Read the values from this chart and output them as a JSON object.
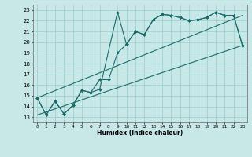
{
  "xlabel": "Humidex (Indice chaleur)",
  "xlim": [
    -0.5,
    23.5
  ],
  "ylim": [
    12.5,
    23.5
  ],
  "yticks": [
    13,
    14,
    15,
    16,
    17,
    18,
    19,
    20,
    21,
    22,
    23
  ],
  "xticks": [
    0,
    1,
    2,
    3,
    4,
    5,
    6,
    7,
    8,
    9,
    10,
    11,
    12,
    13,
    14,
    15,
    16,
    17,
    18,
    19,
    20,
    21,
    22,
    23
  ],
  "bg_color": "#c8e8e8",
  "line_color": "#1a6b6b",
  "grid_color": "#99cccc",
  "line1_x": [
    0,
    1,
    2,
    3,
    4,
    5,
    6,
    7,
    9,
    10,
    11,
    12,
    13,
    14,
    15,
    16,
    17,
    18,
    19,
    20,
    21,
    22,
    23
  ],
  "line1_y": [
    14.8,
    13.2,
    14.5,
    13.3,
    14.1,
    15.5,
    15.3,
    15.6,
    22.8,
    19.8,
    21.0,
    20.7,
    22.1,
    22.6,
    22.5,
    22.3,
    22.0,
    22.1,
    22.3,
    22.8,
    22.5,
    22.5,
    19.7
  ],
  "line2_x": [
    0,
    1,
    2,
    3,
    4,
    5,
    6,
    7,
    8,
    9,
    10,
    11,
    12,
    13,
    14,
    15,
    16,
    17,
    18,
    19,
    20,
    21,
    22,
    23
  ],
  "line2_y": [
    14.8,
    13.2,
    14.5,
    13.3,
    14.1,
    15.5,
    15.3,
    16.5,
    16.5,
    19.0,
    19.8,
    21.0,
    20.7,
    22.1,
    22.6,
    22.5,
    22.3,
    22.0,
    22.1,
    22.3,
    22.8,
    22.5,
    22.5,
    19.7
  ],
  "line3_x": [
    0,
    23
  ],
  "line3_y": [
    13.2,
    19.7
  ],
  "line4_x": [
    0,
    23
  ],
  "line4_y": [
    14.8,
    22.5
  ],
  "marker_x": [
    0,
    1,
    2,
    3,
    4,
    5,
    6,
    7,
    9,
    10,
    11,
    12,
    13,
    14,
    15,
    16,
    17,
    18,
    19,
    20,
    21,
    22,
    23
  ],
  "marker_y": [
    14.8,
    13.2,
    14.5,
    13.3,
    14.1,
    15.5,
    15.3,
    15.6,
    22.8,
    19.8,
    21.0,
    20.7,
    22.1,
    22.6,
    22.5,
    22.3,
    22.0,
    22.1,
    22.3,
    22.8,
    22.5,
    22.5,
    19.7
  ]
}
